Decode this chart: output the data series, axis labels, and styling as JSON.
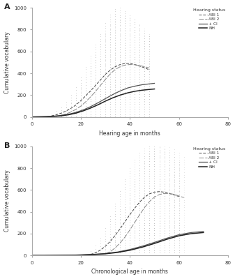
{
  "panel_A": {
    "title": "A",
    "xlabel": "Hearing age in months",
    "ylabel": "Cumulative vocabulary",
    "xlim": [
      0,
      80
    ],
    "ylim": [
      0,
      1000
    ],
    "xticks": [
      0,
      20,
      40,
      60,
      80
    ],
    "yticks": [
      0,
      200,
      400,
      600,
      800,
      1000
    ],
    "ABI1_mean_x": [
      8,
      10,
      12,
      14,
      16,
      18,
      20,
      22,
      24,
      26,
      28,
      30,
      32,
      34,
      36,
      38,
      40,
      42,
      44,
      46,
      48
    ],
    "ABI1_mean_y": [
      10,
      20,
      35,
      55,
      80,
      110,
      150,
      195,
      240,
      290,
      340,
      390,
      430,
      460,
      480,
      490,
      490,
      480,
      465,
      450,
      430
    ],
    "ABI1_max_y": [
      30,
      55,
      90,
      140,
      200,
      270,
      360,
      460,
      560,
      660,
      760,
      860,
      940,
      990,
      1000,
      970,
      930,
      890,
      840,
      790,
      740
    ],
    "ABI2_mean_x": [
      12,
      14,
      16,
      18,
      20,
      22,
      24,
      26,
      28,
      30,
      32,
      34,
      36,
      38,
      40,
      42,
      44,
      46,
      48
    ],
    "ABI2_mean_y": [
      15,
      28,
      46,
      70,
      100,
      140,
      185,
      235,
      290,
      345,
      395,
      435,
      460,
      475,
      480,
      478,
      470,
      460,
      448
    ],
    "ABI2_max_y": [
      50,
      90,
      140,
      200,
      275,
      365,
      465,
      570,
      670,
      760,
      840,
      890,
      920,
      930,
      920,
      890,
      850,
      810,
      760
    ],
    "CI_x": [
      0,
      3,
      6,
      9,
      12,
      15,
      18,
      21,
      24,
      27,
      30,
      33,
      36,
      39,
      42,
      45,
      48,
      50
    ],
    "CI_y": [
      0,
      1,
      3,
      7,
      14,
      25,
      42,
      65,
      95,
      130,
      168,
      205,
      238,
      265,
      282,
      295,
      303,
      308
    ],
    "NH_x": [
      0,
      3,
      6,
      9,
      12,
      15,
      18,
      21,
      24,
      27,
      30,
      33,
      36,
      39,
      42,
      45,
      48,
      50
    ],
    "NH_y": [
      0,
      1,
      2,
      5,
      10,
      20,
      35,
      56,
      82,
      112,
      145,
      175,
      200,
      220,
      235,
      245,
      252,
      256
    ]
  },
  "panel_B": {
    "title": "B",
    "xlabel": "Chronological age in months",
    "ylabel": "Cumulative vocabulary",
    "xlim": [
      0,
      80
    ],
    "ylim": [
      0,
      1000
    ],
    "xticks": [
      0,
      20,
      40,
      60,
      80
    ],
    "yticks": [
      0,
      200,
      400,
      600,
      800,
      1000
    ],
    "ABI1_mean_x": [
      24,
      26,
      28,
      30,
      32,
      34,
      36,
      38,
      40,
      42,
      44,
      46,
      48,
      50,
      52,
      54,
      56,
      58,
      60
    ],
    "ABI1_mean_y": [
      10,
      25,
      50,
      85,
      130,
      185,
      245,
      310,
      375,
      435,
      490,
      535,
      565,
      580,
      585,
      580,
      568,
      555,
      540
    ],
    "ABI1_max_y": [
      40,
      90,
      160,
      250,
      360,
      475,
      590,
      700,
      800,
      880,
      940,
      980,
      1000,
      1000,
      990,
      970,
      940,
      900,
      860
    ],
    "ABI2_mean_x": [
      30,
      32,
      34,
      36,
      38,
      40,
      42,
      44,
      46,
      48,
      50,
      52,
      54,
      56,
      58,
      60,
      62
    ],
    "ABI2_mean_y": [
      15,
      35,
      70,
      115,
      170,
      235,
      305,
      375,
      440,
      495,
      535,
      558,
      568,
      568,
      560,
      545,
      530
    ],
    "ABI2_max_y": [
      60,
      120,
      210,
      320,
      440,
      560,
      675,
      775,
      860,
      930,
      975,
      1000,
      1000,
      990,
      970,
      940,
      900
    ],
    "CI_x": [
      0,
      5,
      10,
      15,
      20,
      25,
      30,
      35,
      40,
      45,
      50,
      55,
      60,
      65,
      70
    ],
    "CI_y": [
      0,
      0,
      1,
      2,
      5,
      10,
      18,
      32,
      55,
      85,
      120,
      158,
      190,
      210,
      220
    ],
    "NH_x": [
      0,
      5,
      10,
      15,
      20,
      25,
      30,
      35,
      40,
      45,
      50,
      55,
      60,
      65,
      70
    ],
    "NH_y": [
      0,
      0,
      1,
      2,
      4,
      8,
      15,
      28,
      48,
      76,
      110,
      148,
      180,
      200,
      210
    ]
  },
  "legend_title": "Hearing status",
  "legend_labels": [
    "ABI 1",
    "ABI 2",
    "+ CI",
    "NH"
  ],
  "color_ABI1": "#444444",
  "color_ABI2": "#888888",
  "color_CI": "#555555",
  "color_NH": "#222222",
  "bg_color": "#ffffff",
  "text_color": "#333333"
}
